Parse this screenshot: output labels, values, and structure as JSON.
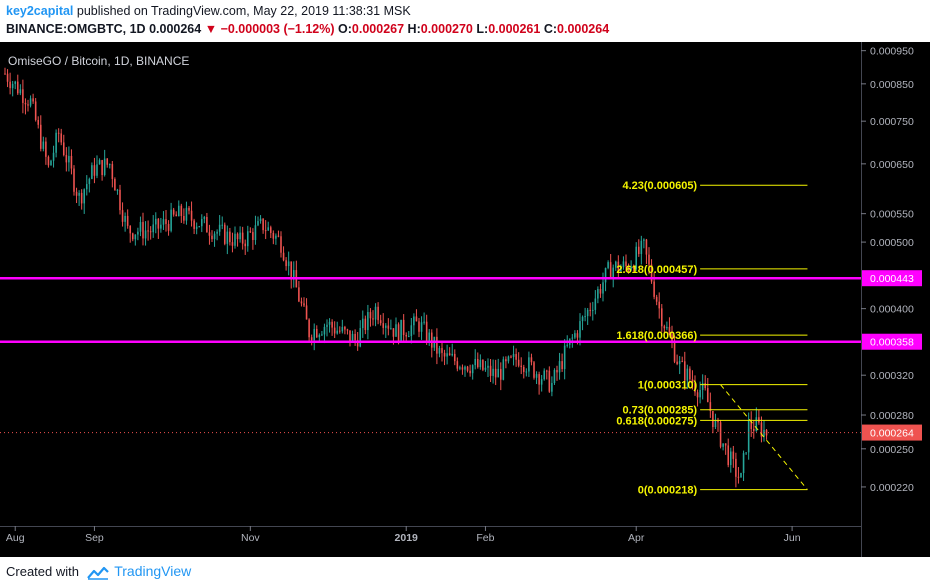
{
  "header": {
    "author": "key2capital",
    "published": "published on TradingView.com, May 22, 2019 11:38:31 MSK",
    "symbol": "BINANCE:OMGBTC, 1D",
    "last": "0.000264",
    "change": "−0.000003 (−1.12%)",
    "o_label": "O:",
    "o_value": "0.000267",
    "h_label": "H:",
    "h_value": "0.000270",
    "l_label": "L:",
    "l_value": "0.000261",
    "c_label": "C:",
    "c_value": "0.000264"
  },
  "footer": {
    "created_with": "Created with",
    "brand": "TradingView"
  },
  "colors": {
    "up": "#26a69a",
    "down": "#ef5350",
    "background": "#000000",
    "fib": "#f5f500",
    "resistance": "#ff00ff",
    "price_line": "#ef5350",
    "axis_text": "#b2b5be"
  },
  "chart_data": {
    "type": "candlestick",
    "title": "OmiseGO / Bitcoin, 1D, BINANCE",
    "y_scale": "log",
    "ylim": [
      0.000205,
      0.000965
    ],
    "xlim": [
      "2018-07-28",
      "2019-06-26"
    ],
    "y_ticks": [
      "0.000950",
      "0.000850",
      "0.000750",
      "0.000650",
      "0.000550",
      "0.000500",
      "0.000400",
      "0.000320",
      "0.000280",
      "0.000250",
      "0.000220"
    ],
    "x_ticks": [
      {
        "label": "Aug",
        "date": "2018-08-01"
      },
      {
        "label": "Sep",
        "date": "2018-09-01"
      },
      {
        "label": "Nov",
        "date": "2018-11-01"
      },
      {
        "label": "2019",
        "date": "2019-01-01"
      },
      {
        "label": "Feb",
        "date": "2019-02-01"
      },
      {
        "label": "Apr",
        "date": "2019-04-01"
      },
      {
        "label": "Jun",
        "date": "2019-06-01"
      }
    ],
    "anchors": [
      [
        "2018-07-28",
        0.00088
      ],
      [
        "2018-08-07",
        0.0008
      ],
      [
        "2018-08-14",
        0.00064
      ],
      [
        "2018-08-18",
        0.00072
      ],
      [
        "2018-08-26",
        0.00058
      ],
      [
        "2018-09-01",
        0.00064
      ],
      [
        "2018-09-07",
        0.00065
      ],
      [
        "2018-09-14",
        0.00052
      ],
      [
        "2018-09-24",
        0.00052
      ],
      [
        "2018-10-05",
        0.00055
      ],
      [
        "2018-10-18",
        0.00052
      ],
      [
        "2018-10-28",
        0.0005
      ],
      [
        "2018-11-06",
        0.00053
      ],
      [
        "2018-11-13",
        0.0005
      ],
      [
        "2018-11-18",
        0.00044
      ],
      [
        "2018-11-24",
        0.00037
      ],
      [
        "2018-12-01",
        0.00038
      ],
      [
        "2018-12-12",
        0.00036
      ],
      [
        "2018-12-20",
        0.0004
      ],
      [
        "2018-12-28",
        0.00037
      ],
      [
        "2019-01-06",
        0.00038
      ],
      [
        "2019-01-15",
        0.00034
      ],
      [
        "2019-01-28",
        0.00033
      ],
      [
        "2019-02-05",
        0.00032
      ],
      [
        "2019-02-14",
        0.00034
      ],
      [
        "2019-02-27",
        0.00031
      ],
      [
        "2019-03-05",
        0.00035
      ],
      [
        "2019-03-12",
        0.00039
      ],
      [
        "2019-03-22",
        0.00046
      ],
      [
        "2019-03-28",
        0.00046
      ],
      [
        "2019-04-04",
        0.00049
      ],
      [
        "2019-04-10",
        0.0004
      ],
      [
        "2019-04-18",
        0.00033
      ],
      [
        "2019-04-24",
        0.00031
      ],
      [
        "2019-04-28",
        0.0003
      ],
      [
        "2019-05-02",
        0.00027
      ],
      [
        "2019-05-09",
        0.000235
      ],
      [
        "2019-05-12",
        0.000225
      ],
      [
        "2019-05-15",
        0.00027
      ],
      [
        "2019-05-18",
        0.00027
      ],
      [
        "2019-05-22",
        0.000264
      ]
    ],
    "resistance_lines": [
      {
        "value": 0.000443,
        "label": "0.000443"
      },
      {
        "value": 0.000358,
        "label": "0.000358"
      }
    ],
    "last_price": {
      "value": 0.000264,
      "label": "0.000264"
    },
    "fib_levels": [
      {
        "label": "4.23(0.000605)",
        "value": 0.000605
      },
      {
        "label": "2.618(0.000457)",
        "value": 0.000457
      },
      {
        "label": "1.618(0.000366)",
        "value": 0.000366
      },
      {
        "label": "1(0.000310)",
        "value": 0.00031
      },
      {
        "label": "0.73(0.000285)",
        "value": 0.000285
      },
      {
        "label": "0.618(0.000275)",
        "value": 0.000275
      },
      {
        "label": "0(0.000218)",
        "value": 0.000218
      }
    ],
    "fib_start_date": "2019-04-26",
    "fib_end_date": "2019-06-07",
    "trendline": {
      "start": [
        "2019-05-04",
        0.00031
      ],
      "end": [
        "2019-06-07",
        0.000218
      ]
    }
  }
}
